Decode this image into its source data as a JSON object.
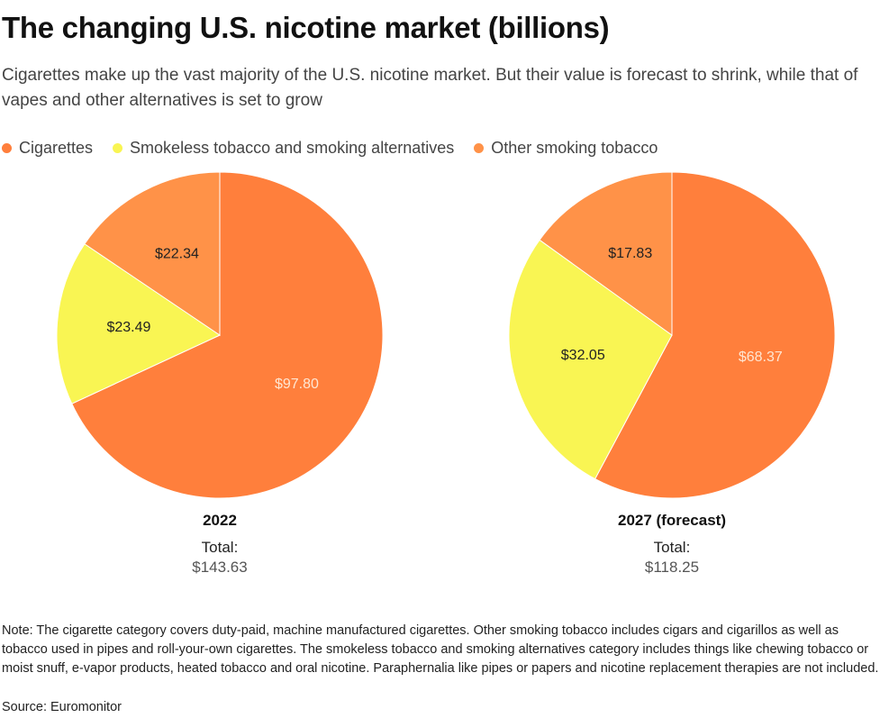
{
  "header": {
    "title": "The changing U.S. nicotine market (billions)",
    "subtitle": "Cigarettes make up the vast majority of the U.S. nicotine market. But their value is forecast to shrink, while that of vapes and other alternatives is set to grow"
  },
  "legend": [
    {
      "label": "Cigarettes",
      "color": "#ff7f3c"
    },
    {
      "label": "Smokeless tobacco and smoking alternatives",
      "color": "#f9f553"
    },
    {
      "label": "Other smoking tobacco",
      "color": "#ff9248"
    }
  ],
  "chart_data": [
    {
      "type": "pie",
      "title": "2022",
      "total_label": "Total:",
      "total_value": "$143.63",
      "slices": [
        {
          "label": "Cigarettes",
          "value": 97.8,
          "display": "$97.80",
          "color": "#ff7f3c",
          "label_color": "#ffe6d2"
        },
        {
          "label": "Smokeless tobacco and smoking alternatives",
          "value": 23.49,
          "display": "$23.49",
          "color": "#f9f553",
          "label_color": "#222222"
        },
        {
          "label": "Other smoking tobacco",
          "value": 22.34,
          "display": "$22.34",
          "color": "#ff9248",
          "label_color": "#222222"
        }
      ]
    },
    {
      "type": "pie",
      "title": "2027 (forecast)",
      "total_label": "Total:",
      "total_value": "$118.25",
      "slices": [
        {
          "label": "Cigarettes",
          "value": 68.37,
          "display": "$68.37",
          "color": "#ff7f3c",
          "label_color": "#ffe6d2"
        },
        {
          "label": "Smokeless tobacco and smoking alternatives",
          "value": 32.05,
          "display": "$32.05",
          "color": "#f9f553",
          "label_color": "#222222"
        },
        {
          "label": "Other smoking tobacco",
          "value": 17.83,
          "display": "$17.83",
          "color": "#ff9248",
          "label_color": "#222222"
        }
      ]
    }
  ],
  "footer": {
    "note": "Note: The cigarette category covers duty-paid, machine manufactured cigarettes. Other smoking tobacco includes cigars and cigarillos as well as tobacco used in pipes and roll-your-own cigarettes. The smokeless tobacco and smoking alternatives category includes things like chewing tobacco or moist snuff, e-vapor products, heated tobacco and oral nicotine. Paraphernalia like pipes or papers and nicotine replacement therapies are not included.",
    "source": "Source: Euromonitor"
  }
}
